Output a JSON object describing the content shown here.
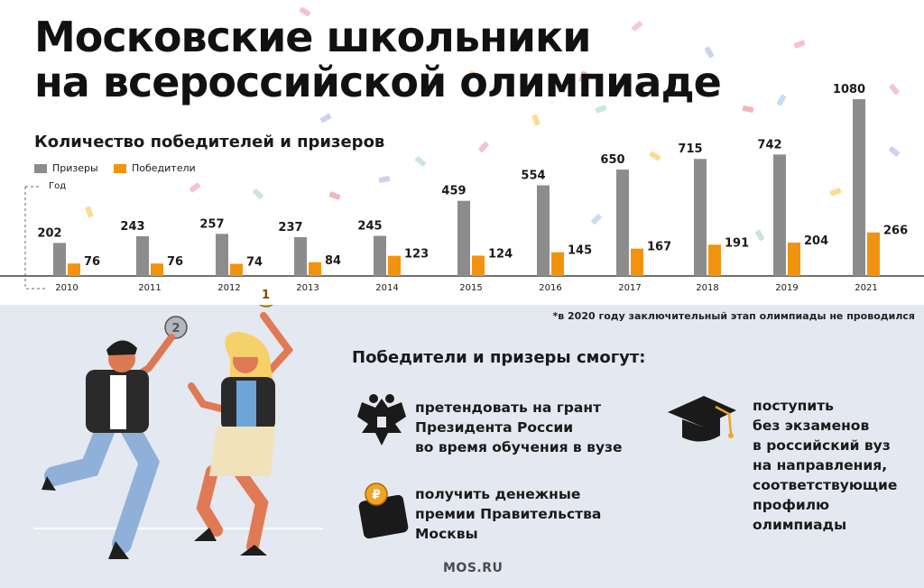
{
  "title_line1": "Московские школьники",
  "title_line2": "на всероссийской олимпиаде",
  "chart_data": {
    "type": "bar",
    "title": "Количество победителей и призеров",
    "xlabel": "Год",
    "categories": [
      "2010",
      "2011",
      "2012",
      "2013",
      "2014",
      "2015",
      "2016",
      "2017",
      "2018",
      "2019",
      "2021"
    ],
    "series": [
      {
        "name": "Призеры",
        "color": "#8c8c8c",
        "values": [
          202,
          243,
          257,
          237,
          245,
          459,
          554,
          650,
          715,
          742,
          1080
        ]
      },
      {
        "name": "Победители",
        "color": "#f2930f",
        "values": [
          76,
          76,
          74,
          84,
          123,
          124,
          145,
          167,
          191,
          204,
          266
        ]
      }
    ],
    "ylim": [
      0,
      1080
    ],
    "grid": false,
    "legend_position": "top-left"
  },
  "footnote": "*в 2020 году заключительный этап олимпиады не проводился",
  "benefits": {
    "heading": "Победители и призеры смогут:",
    "grant_text": "претендовать на грант\nПрезидента России\nво время обучения в вузе",
    "prize_text": "получить денежные\nпремии Правительства\nМосквы",
    "admission_text": "поступить\nбез экзаменов\nв российский вуз\nна направления,\nсоответствующие\nпрофилю\nолимпиады"
  },
  "medals": {
    "second": "2",
    "first": "1"
  },
  "coin_symbol": "₽",
  "source": "MOS.RU",
  "colors": {
    "winners": "#f2930f",
    "prizewinners": "#8c8c8c",
    "bottom_bg": "#e4e8f0",
    "ink": "#1a1a1a"
  },
  "icons": [
    "eagle-emblem-icon",
    "wallet-coin-icon",
    "graduation-cap-icon",
    "medal-icon"
  ]
}
